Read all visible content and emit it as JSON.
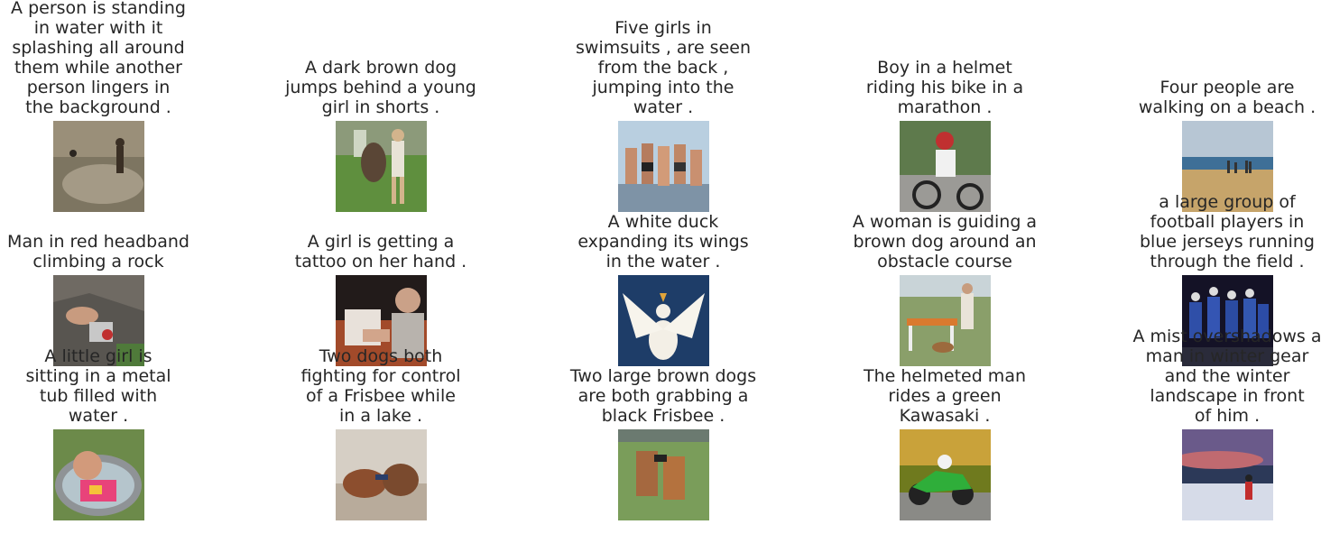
{
  "gallery": [
    {
      "lines": [
        "A person is standing",
        "in water with it",
        "splashing all around",
        "them while another",
        "person lingers in",
        "the background ."
      ],
      "icon": "splashing-person-photo"
    },
    {
      "lines": [
        "A dark brown dog",
        "jumps behind a young",
        "girl in shorts ."
      ],
      "icon": "dog-jumping-photo"
    },
    {
      "lines": [
        "Five girls in",
        "swimsuits , are seen",
        "from the back ,",
        "jumping into the",
        "water ."
      ],
      "icon": "girls-jumping-photo"
    },
    {
      "lines": [
        "Boy in a helmet",
        "riding his bike in a",
        "marathon ."
      ],
      "icon": "cyclist-photo"
    },
    {
      "lines": [
        "Four people are",
        "walking on a beach ."
      ],
      "icon": "beach-walk-photo"
    },
    {
      "lines": [
        "Man in red headband",
        "climbing a rock"
      ],
      "icon": "rock-climber-photo"
    },
    {
      "lines": [
        "A girl is getting a",
        "tattoo on her hand ."
      ],
      "icon": "tattoo-photo"
    },
    {
      "lines": [
        "A white duck",
        "expanding its wings",
        "in the water ."
      ],
      "icon": "white-duck-photo"
    },
    {
      "lines": [
        "A woman is guiding a",
        "brown dog around an",
        "obstacle course"
      ],
      "icon": "dog-agility-photo"
    },
    {
      "lines": [
        "a large group of",
        "football players in",
        "blue jerseys running",
        "through the field ."
      ],
      "icon": "football-players-photo"
    },
    {
      "lines": [
        "A little girl is",
        "sitting in a metal",
        "tub filled with",
        "water ."
      ],
      "icon": "girl-in-tub-photo"
    },
    {
      "lines": [
        "Two dogs both",
        "fighting for control",
        "of a Frisbee while",
        "in a lake ."
      ],
      "icon": "dogs-in-lake-photo"
    },
    {
      "lines": [
        "Two large brown dogs",
        "are both grabbing a",
        "black Frisbee ."
      ],
      "icon": "dogs-frisbee-photo"
    },
    {
      "lines": [
        "The helmeted man",
        "rides a green",
        "Kawasaki ."
      ],
      "icon": "green-motorcycle-photo"
    },
    {
      "lines": [
        "A mist overshadows a",
        "man in winter gear",
        "and the winter",
        "landscape in front",
        "of him ."
      ],
      "icon": "winter-hiker-photo"
    }
  ]
}
